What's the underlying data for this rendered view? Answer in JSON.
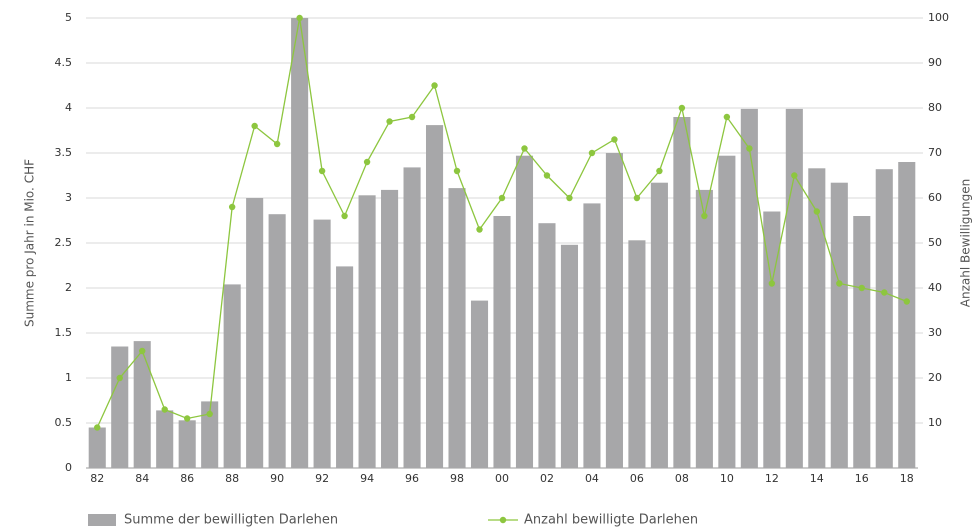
{
  "chart_data": {
    "type": "bar",
    "ylabel": "Summe pro Jahr in Mio. CHF",
    "y2label": "Anzahl Bewilligungen",
    "categories": [
      "82",
      null,
      "84",
      null,
      "86",
      null,
      "88",
      null,
      "90",
      null,
      "92",
      null,
      "94",
      null,
      "96",
      null,
      "98",
      null,
      "00",
      null,
      "02",
      null,
      "04",
      null,
      "06",
      null,
      "08",
      null,
      "10",
      null,
      "12",
      null,
      "14",
      null,
      "16",
      null,
      "18"
    ],
    "series": [
      {
        "name": "Summe der bewilligten Darlehen",
        "color": "#a7a7a9",
        "values": [
          0.45,
          1.35,
          1.41,
          0.64,
          0.53,
          0.74,
          2.04,
          3.0,
          2.82,
          5.0,
          2.76,
          2.24,
          3.03,
          3.09,
          3.34,
          3.81,
          3.11,
          1.86,
          2.8,
          3.47,
          2.72,
          2.48,
          2.94,
          3.5,
          2.53,
          3.17,
          3.9,
          3.09,
          3.47,
          3.99,
          2.85,
          3.99,
          3.33,
          3.17,
          2.8,
          3.32,
          3.4
        ]
      },
      {
        "name": "Anzahl bewilligte Darlehen",
        "color": "#8dc63f",
        "type": "line",
        "axis": "y2",
        "values": [
          9,
          20,
          26,
          13,
          11,
          12,
          58,
          76,
          72,
          100,
          66,
          56,
          68,
          77,
          78,
          85,
          66,
          53,
          60,
          71,
          65,
          60,
          70,
          73,
          60,
          66,
          80,
          56,
          78,
          71,
          41,
          65,
          57,
          41,
          40,
          39,
          37
        ]
      }
    ],
    "ylim": [
      0,
      5
    ],
    "yticks": [
      0,
      0.5,
      1,
      1.5,
      2,
      2.5,
      3,
      3.5,
      4,
      4.5,
      5
    ],
    "y2lim": [
      0,
      100
    ],
    "y2ticks": [
      10,
      20,
      30,
      40,
      50,
      60,
      70,
      80,
      90,
      100
    ],
    "grid": true,
    "legend": "bottom"
  }
}
